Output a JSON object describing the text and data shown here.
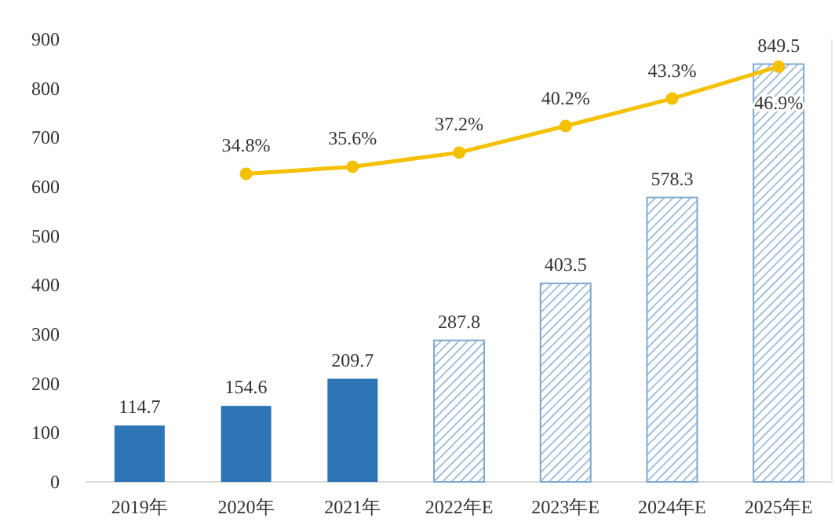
{
  "chart_data": {
    "type": "bar",
    "categories": [
      "2019年",
      "2020年",
      "2021年",
      "2022年E",
      "2023年E",
      "2024年E",
      "2025年E"
    ],
    "ylim": [
      0,
      900
    ],
    "yticks": [
      0,
      100,
      200,
      300,
      400,
      500,
      600,
      700,
      800,
      900
    ],
    "y2lim": [
      0,
      50
    ],
    "grid": false,
    "tick_labels": "xy",
    "series": [
      {
        "color": "#2e75b6",
        "values": [
          114.7,
          154.6,
          209.7,
          null,
          null,
          null,
          null
        ],
        "value_labels": [
          "114.7",
          "154.6",
          "209.7",
          null,
          null,
          null,
          null
        ]
      },
      {
        "color": "#7fa8cf",
        "values": [
          null,
          null,
          null,
          287.8,
          403.5,
          578.3,
          849.5
        ],
        "value_labels": [
          null,
          null,
          null,
          "287.8",
          "403.5",
          "578.3",
          "849.5"
        ]
      },
      {
        "type": "line",
        "axis": "y2",
        "color": "#f5c000",
        "marker": "circle",
        "values": [
          null,
          34.8,
          35.6,
          37.2,
          40.2,
          43.3,
          46.9
        ],
        "value_labels": [
          null,
          "34.8%",
          "35.6%",
          "37.2%",
          "40.2%",
          "43.3%",
          "46.9%"
        ]
      }
    ]
  }
}
